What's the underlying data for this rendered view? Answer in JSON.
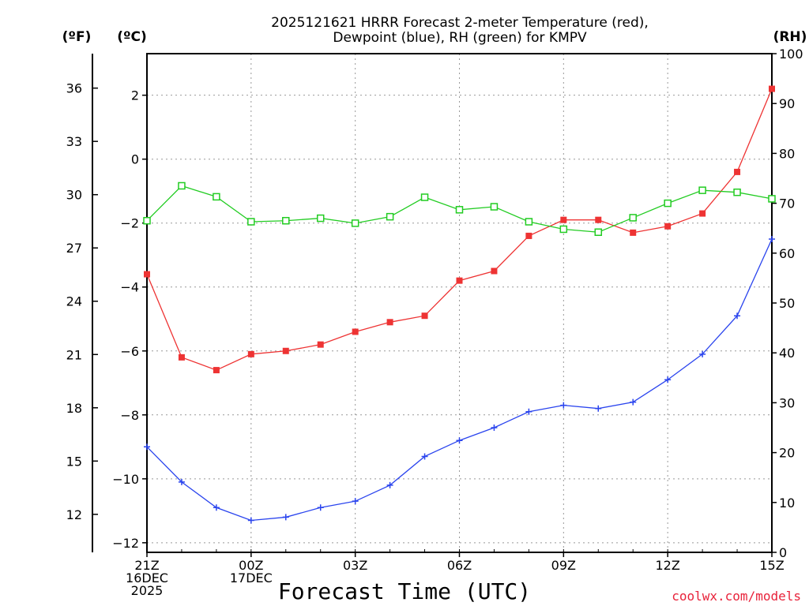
{
  "chart_data": {
    "type": "line",
    "title_line1": "2025121621 HRRR Forecast 2-meter Temperature (red),",
    "title_line2": "Dewpoint (blue), RH (green) for KMPV",
    "xlabel": "Forecast Time (UTC)",
    "credit": "coolwx.com/models",
    "axes": {
      "fahrenheit": {
        "label": "(ºF)",
        "ticks": [
          12,
          15,
          18,
          21,
          24,
          27,
          30,
          33,
          36
        ]
      },
      "celsius": {
        "label": "(ºC)",
        "ticks": [
          -12,
          -10,
          -8,
          -6,
          -4,
          -2,
          0,
          2
        ],
        "ylim": [
          -12.3,
          3.3
        ]
      },
      "rh": {
        "label": "(RH)",
        "ticks": [
          0,
          10,
          20,
          30,
          40,
          50,
          60,
          70,
          80,
          90,
          100
        ],
        "ylim": [
          0,
          100
        ]
      }
    },
    "x_ticks": [
      {
        "hour": 0,
        "lines": [
          "21Z",
          "16DEC",
          "2025"
        ]
      },
      {
        "hour": 3,
        "lines": [
          "00Z",
          "17DEC"
        ]
      },
      {
        "hour": 6,
        "lines": [
          "03Z"
        ]
      },
      {
        "hour": 9,
        "lines": [
          "06Z"
        ]
      },
      {
        "hour": 12,
        "lines": [
          "09Z"
        ]
      },
      {
        "hour": 15,
        "lines": [
          "12Z"
        ]
      },
      {
        "hour": 18,
        "lines": [
          "15Z"
        ]
      }
    ],
    "xlim": [
      0,
      18
    ],
    "x": [
      0,
      1,
      2,
      3,
      4,
      5,
      6,
      7,
      8,
      9,
      10,
      11,
      12,
      13,
      14,
      15,
      16,
      17,
      18
    ],
    "series": [
      {
        "name": "Temperature",
        "axis": "celsius",
        "color": "#ee3333",
        "marker": "filled-square",
        "values": [
          -3.6,
          -6.2,
          -6.6,
          -6.1,
          -6.0,
          -5.8,
          -5.4,
          -5.1,
          -4.9,
          -3.8,
          -3.5,
          -2.4,
          -1.9,
          -1.9,
          -2.3,
          -2.1,
          -1.7,
          -0.4,
          2.2
        ]
      },
      {
        "name": "Dewpoint",
        "axis": "celsius",
        "color": "#2a44ee",
        "marker": "plus",
        "values": [
          -9.0,
          -10.1,
          -10.9,
          -11.3,
          -11.2,
          -10.9,
          -10.7,
          -10.2,
          -9.3,
          -8.8,
          -8.4,
          -7.9,
          -7.7,
          -7.8,
          -7.6,
          -6.9,
          -6.1,
          -4.9,
          -2.5
        ]
      },
      {
        "name": "RH",
        "axis": "rh",
        "color": "#22cc22",
        "marker": "open-square",
        "values": [
          66.5,
          73.5,
          71.3,
          66.3,
          66.5,
          67.0,
          66.0,
          67.3,
          71.2,
          68.7,
          69.3,
          66.3,
          64.8,
          64.2,
          67.1,
          70.0,
          72.6,
          72.2,
          70.9
        ]
      }
    ]
  }
}
